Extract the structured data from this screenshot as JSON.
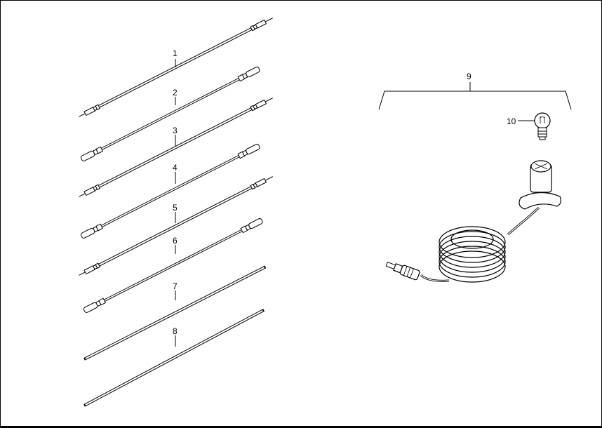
{
  "diagram": {
    "callouts": [
      "1",
      "2",
      "3",
      "4",
      "5",
      "6",
      "7",
      "8",
      "9",
      "10"
    ]
  },
  "colors": {
    "line": "#000000",
    "background": "#ffffff",
    "fill_light": "#ffffff",
    "fill_shade": "#e6e6e6"
  }
}
